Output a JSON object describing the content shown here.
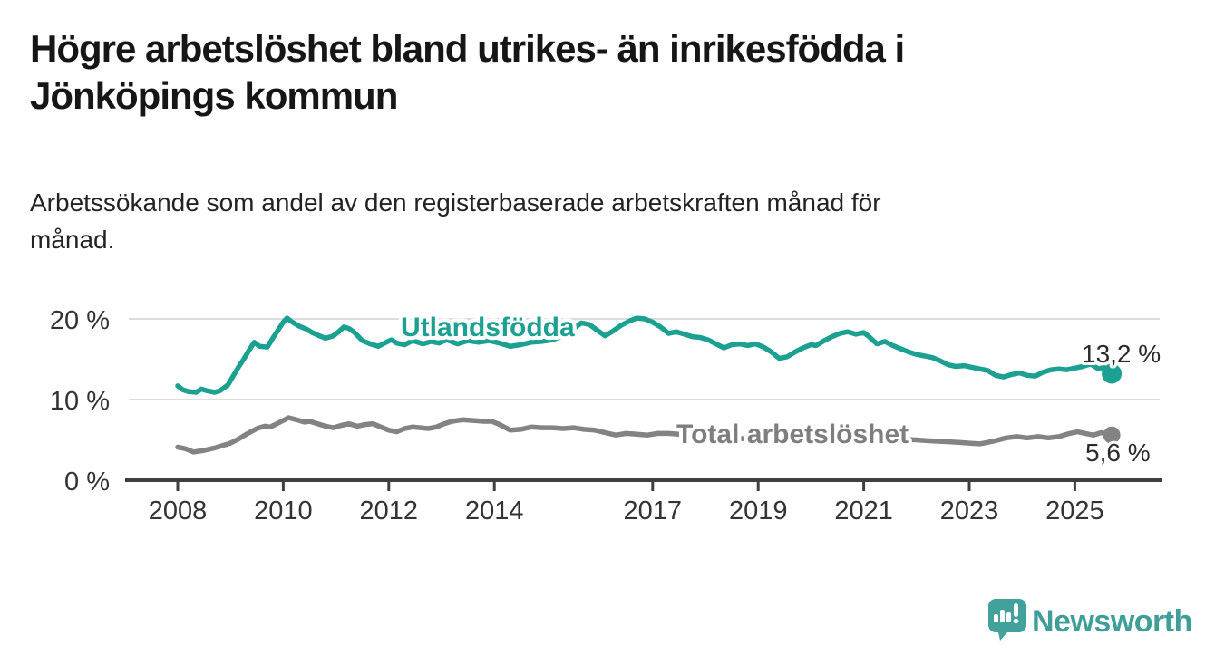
{
  "header": {
    "title_line1": "Högre arbetslöshet bland utrikes- än inrikesfödda i",
    "title_line2": "Jönköpings kommun",
    "subtitle_line1": "Arbetssökande som andel av den registerbaserade arbetskraften månad för",
    "subtitle_line2": "månad."
  },
  "chart_data": {
    "type": "line",
    "title": "Högre arbetslöshet bland utrikes- än inrikesfödda i Jönköpings kommun",
    "subtitle": "Arbetssökande som andel av den registerbaserade arbetskraften månad för månad.",
    "xlabel": "",
    "ylabel": "",
    "x_unit": "year (decimal, monthly data)",
    "y_unit": "percent",
    "xlim": [
      2007.9,
      2025.95
    ],
    "ylim": [
      0,
      21
    ],
    "grid": "horizontal",
    "legend_position": "inline-labels",
    "y_ticks": [
      {
        "value": 20,
        "label": "20 %"
      },
      {
        "value": 10,
        "label": "10 %"
      },
      {
        "value": 0,
        "label": "0 %"
      }
    ],
    "x_ticks": [
      {
        "value": 2008,
        "label": "2008"
      },
      {
        "value": 2010,
        "label": "2010"
      },
      {
        "value": 2012,
        "label": "2012"
      },
      {
        "value": 2014,
        "label": "2014"
      },
      {
        "value": 2017,
        "label": "2017"
      },
      {
        "value": 2019,
        "label": "2019"
      },
      {
        "value": 2021,
        "label": "2021"
      },
      {
        "value": 2023,
        "label": "2023"
      },
      {
        "value": 2025,
        "label": "2025"
      }
    ],
    "series": [
      {
        "name": "Utlandsfödda",
        "color": "#1ca092",
        "end_label": "13,2 %",
        "last_value": 13.2,
        "points": [
          [
            2008.0,
            11.7
          ],
          [
            2008.1,
            11.2
          ],
          [
            2008.2,
            11.0
          ],
          [
            2008.35,
            10.9
          ],
          [
            2008.45,
            11.3
          ],
          [
            2008.55,
            11.1
          ],
          [
            2008.7,
            10.9
          ],
          [
            2008.8,
            11.1
          ],
          [
            2008.95,
            11.8
          ],
          [
            2009.05,
            12.9
          ],
          [
            2009.15,
            14.0
          ],
          [
            2009.25,
            15.0
          ],
          [
            2009.35,
            16.1
          ],
          [
            2009.45,
            17.1
          ],
          [
            2009.55,
            16.6
          ],
          [
            2009.7,
            16.5
          ],
          [
            2009.8,
            17.6
          ],
          [
            2009.9,
            18.6
          ],
          [
            2010.0,
            19.6
          ],
          [
            2010.07,
            20.1
          ],
          [
            2010.15,
            19.7
          ],
          [
            2010.3,
            19.1
          ],
          [
            2010.45,
            18.7
          ],
          [
            2010.55,
            18.3
          ],
          [
            2010.65,
            18.0
          ],
          [
            2010.8,
            17.6
          ],
          [
            2010.95,
            17.9
          ],
          [
            2011.05,
            18.4
          ],
          [
            2011.15,
            19.0
          ],
          [
            2011.25,
            18.8
          ],
          [
            2011.35,
            18.3
          ],
          [
            2011.5,
            17.3
          ],
          [
            2011.65,
            16.9
          ],
          [
            2011.8,
            16.6
          ],
          [
            2011.95,
            17.1
          ],
          [
            2012.05,
            17.4
          ],
          [
            2012.15,
            17.0
          ],
          [
            2012.3,
            16.8
          ],
          [
            2012.45,
            17.3
          ],
          [
            2012.55,
            17.1
          ],
          [
            2012.65,
            16.9
          ],
          [
            2012.8,
            17.2
          ],
          [
            2012.95,
            17.0
          ],
          [
            2013.1,
            17.4
          ],
          [
            2013.3,
            16.9
          ],
          [
            2013.5,
            17.3
          ],
          [
            2013.7,
            17.1
          ],
          [
            2013.9,
            17.3
          ],
          [
            2014.1,
            17.0
          ],
          [
            2014.3,
            16.6
          ],
          [
            2014.5,
            16.8
          ],
          [
            2014.7,
            17.1
          ],
          [
            2014.9,
            17.2
          ],
          [
            2015.1,
            17.4
          ],
          [
            2015.3,
            17.9
          ],
          [
            2015.5,
            18.8
          ],
          [
            2015.65,
            19.5
          ],
          [
            2015.8,
            19.3
          ],
          [
            2015.95,
            18.6
          ],
          [
            2016.1,
            17.9
          ],
          [
            2016.25,
            18.5
          ],
          [
            2016.4,
            19.2
          ],
          [
            2016.55,
            19.7
          ],
          [
            2016.7,
            20.1
          ],
          [
            2016.85,
            20.0
          ],
          [
            2017.0,
            19.6
          ],
          [
            2017.15,
            19.0
          ],
          [
            2017.3,
            18.2
          ],
          [
            2017.45,
            18.4
          ],
          [
            2017.6,
            18.1
          ],
          [
            2017.75,
            17.8
          ],
          [
            2017.9,
            17.7
          ],
          [
            2018.05,
            17.4
          ],
          [
            2018.2,
            16.9
          ],
          [
            2018.35,
            16.4
          ],
          [
            2018.5,
            16.8
          ],
          [
            2018.65,
            16.9
          ],
          [
            2018.8,
            16.7
          ],
          [
            2018.95,
            16.9
          ],
          [
            2019.1,
            16.5
          ],
          [
            2019.25,
            15.9
          ],
          [
            2019.4,
            15.1
          ],
          [
            2019.55,
            15.3
          ],
          [
            2019.7,
            15.9
          ],
          [
            2019.85,
            16.4
          ],
          [
            2020.0,
            16.8
          ],
          [
            2020.1,
            16.7
          ],
          [
            2020.25,
            17.3
          ],
          [
            2020.4,
            17.8
          ],
          [
            2020.55,
            18.2
          ],
          [
            2020.7,
            18.4
          ],
          [
            2020.85,
            18.1
          ],
          [
            2021.0,
            18.3
          ],
          [
            2021.1,
            17.8
          ],
          [
            2021.25,
            16.9
          ],
          [
            2021.4,
            17.2
          ],
          [
            2021.55,
            16.7
          ],
          [
            2021.7,
            16.3
          ],
          [
            2021.85,
            15.9
          ],
          [
            2022.0,
            15.6
          ],
          [
            2022.15,
            15.4
          ],
          [
            2022.3,
            15.2
          ],
          [
            2022.45,
            14.8
          ],
          [
            2022.6,
            14.3
          ],
          [
            2022.75,
            14.1
          ],
          [
            2022.9,
            14.2
          ],
          [
            2023.05,
            14.0
          ],
          [
            2023.2,
            13.8
          ],
          [
            2023.35,
            13.6
          ],
          [
            2023.5,
            13.0
          ],
          [
            2023.65,
            12.8
          ],
          [
            2023.8,
            13.1
          ],
          [
            2023.95,
            13.3
          ],
          [
            2024.1,
            13.0
          ],
          [
            2024.25,
            12.9
          ],
          [
            2024.4,
            13.4
          ],
          [
            2024.55,
            13.7
          ],
          [
            2024.7,
            13.8
          ],
          [
            2024.85,
            13.7
          ],
          [
            2025.0,
            13.9
          ],
          [
            2025.15,
            14.1
          ],
          [
            2025.3,
            14.4
          ],
          [
            2025.45,
            13.8
          ],
          [
            2025.55,
            14.0
          ],
          [
            2025.7,
            13.2
          ]
        ]
      },
      {
        "name": "Total arbetslöshet",
        "color": "#838383",
        "end_label": "5,6 %",
        "last_value": 5.6,
        "points": [
          [
            2008.0,
            4.1
          ],
          [
            2008.15,
            3.9
          ],
          [
            2008.3,
            3.5
          ],
          [
            2008.5,
            3.7
          ],
          [
            2008.7,
            4.0
          ],
          [
            2008.85,
            4.3
          ],
          [
            2009.0,
            4.6
          ],
          [
            2009.15,
            5.1
          ],
          [
            2009.3,
            5.7
          ],
          [
            2009.5,
            6.4
          ],
          [
            2009.65,
            6.7
          ],
          [
            2009.75,
            6.6
          ],
          [
            2009.85,
            6.9
          ],
          [
            2010.0,
            7.4
          ],
          [
            2010.1,
            7.75
          ],
          [
            2010.25,
            7.5
          ],
          [
            2010.4,
            7.2
          ],
          [
            2010.5,
            7.3
          ],
          [
            2010.65,
            7.0
          ],
          [
            2010.8,
            6.7
          ],
          [
            2010.95,
            6.5
          ],
          [
            2011.1,
            6.8
          ],
          [
            2011.25,
            7.0
          ],
          [
            2011.4,
            6.7
          ],
          [
            2011.55,
            6.9
          ],
          [
            2011.7,
            7.0
          ],
          [
            2011.85,
            6.6
          ],
          [
            2012.0,
            6.2
          ],
          [
            2012.15,
            6.0
          ],
          [
            2012.3,
            6.4
          ],
          [
            2012.45,
            6.6
          ],
          [
            2012.6,
            6.5
          ],
          [
            2012.75,
            6.4
          ],
          [
            2012.9,
            6.6
          ],
          [
            2013.05,
            7.0
          ],
          [
            2013.2,
            7.3
          ],
          [
            2013.4,
            7.5
          ],
          [
            2013.6,
            7.4
          ],
          [
            2013.8,
            7.3
          ],
          [
            2013.95,
            7.3
          ],
          [
            2014.1,
            6.9
          ],
          [
            2014.3,
            6.2
          ],
          [
            2014.5,
            6.3
          ],
          [
            2014.7,
            6.6
          ],
          [
            2014.9,
            6.5
          ],
          [
            2015.1,
            6.5
          ],
          [
            2015.3,
            6.4
          ],
          [
            2015.5,
            6.5
          ],
          [
            2015.7,
            6.3
          ],
          [
            2015.9,
            6.2
          ],
          [
            2016.1,
            5.9
          ],
          [
            2016.3,
            5.6
          ],
          [
            2016.5,
            5.8
          ],
          [
            2016.7,
            5.7
          ],
          [
            2016.9,
            5.6
          ],
          [
            2017.1,
            5.8
          ],
          [
            2017.3,
            5.8
          ],
          [
            2017.5,
            5.7
          ],
          [
            2017.7,
            5.6
          ],
          [
            2018.0,
            5.4
          ],
          [
            2018.5,
            5.2
          ],
          [
            2019.0,
            5.1
          ],
          [
            2019.5,
            4.9
          ],
          [
            2020.0,
            5.2
          ],
          [
            2020.4,
            5.6
          ],
          [
            2020.8,
            5.5
          ],
          [
            2021.2,
            5.3
          ],
          [
            2021.6,
            5.1
          ],
          [
            2022.0,
            5.0
          ],
          [
            2022.2,
            4.9
          ],
          [
            2022.5,
            4.8
          ],
          [
            2022.8,
            4.7
          ],
          [
            2023.0,
            4.6
          ],
          [
            2023.2,
            4.5
          ],
          [
            2023.5,
            4.9
          ],
          [
            2023.7,
            5.25
          ],
          [
            2023.9,
            5.4
          ],
          [
            2024.1,
            5.25
          ],
          [
            2024.3,
            5.4
          ],
          [
            2024.5,
            5.25
          ],
          [
            2024.7,
            5.4
          ],
          [
            2024.9,
            5.8
          ],
          [
            2025.05,
            6.0
          ],
          [
            2025.2,
            5.8
          ],
          [
            2025.35,
            5.6
          ],
          [
            2025.5,
            5.9
          ],
          [
            2025.7,
            5.6
          ]
        ]
      }
    ],
    "annotations": [
      {
        "text": "13,2 %",
        "series": "Utlandsfödda",
        "kind": "end-value"
      },
      {
        "text": "5,6 %",
        "series": "Total arbetslöshet",
        "kind": "end-value"
      }
    ]
  },
  "branding": {
    "logo_text": "Newsworthy",
    "logo_icon": "bar-chart-speech-bubble-icon",
    "logo_color": "#42a19a"
  },
  "colors": {
    "background": "#ffffff",
    "title": "#161616",
    "subtitle": "#232323",
    "axis": "#3f3f3f",
    "gridline": "#dcdcdc",
    "tick_label": "#333333",
    "series_utlandsfodda": "#1ca092",
    "series_total": "#838383",
    "end_value_label": "#2b2b2b",
    "total_series_label": "#7e7e7e"
  }
}
